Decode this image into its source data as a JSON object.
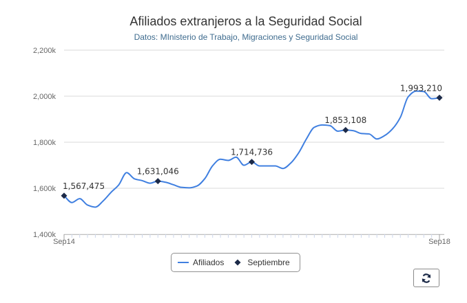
{
  "chart_data": {
    "type": "line",
    "title": "Afiliados extranjeros a la Seguridad Social",
    "subtitle": "Datos: MInisterio de Trabajo, Migraciones y Seguridad Social",
    "ylim": [
      1400000,
      2200000
    ],
    "yticks": [
      1400000,
      1600000,
      1800000,
      2000000,
      2200000
    ],
    "ytick_labels": [
      "1,400k",
      "1,600k",
      "1,800k",
      "2,000k",
      "2,200k"
    ],
    "xtick_labels": [
      "Sep14",
      "Sep18"
    ],
    "grid": true,
    "legend_position": "bottom-center",
    "series": [
      {
        "name": "Afiliados",
        "color": "#3f7fe0",
        "values": [
          1567475,
          1538000,
          1555000,
          1527000,
          1518000,
          1545000,
          1582000,
          1615000,
          1668000,
          1641000,
          1633000,
          1622000,
          1631046,
          1626000,
          1615000,
          1604000,
          1602000,
          1610000,
          1642000,
          1698000,
          1726000,
          1721000,
          1735000,
          1700000,
          1714736,
          1697000,
          1697000,
          1697000,
          1686000,
          1710000,
          1754000,
          1815000,
          1865000,
          1875000,
          1872000,
          1848000,
          1853108,
          1850000,
          1838000,
          1836000,
          1814000,
          1829000,
          1858000,
          1908000,
          1997000,
          2022000,
          2020000,
          1989000,
          1993210
        ]
      },
      {
        "name": "Septiembre",
        "color": "#1c2a48",
        "points": [
          {
            "index": 0,
            "value": 1567475,
            "label": "1,567,475"
          },
          {
            "index": 12,
            "value": 1631046,
            "label": "1,631,046"
          },
          {
            "index": 24,
            "value": 1714736,
            "label": "1,714,736"
          },
          {
            "index": 36,
            "value": 1853108,
            "label": "1,853,108"
          },
          {
            "index": 48,
            "value": 1993210,
            "label": "1,993,210"
          }
        ]
      }
    ]
  },
  "legend": {
    "afiliados_label": "Afiliados",
    "septiembre_label": "Septiembre"
  },
  "refresh_icon": "refresh-icon"
}
